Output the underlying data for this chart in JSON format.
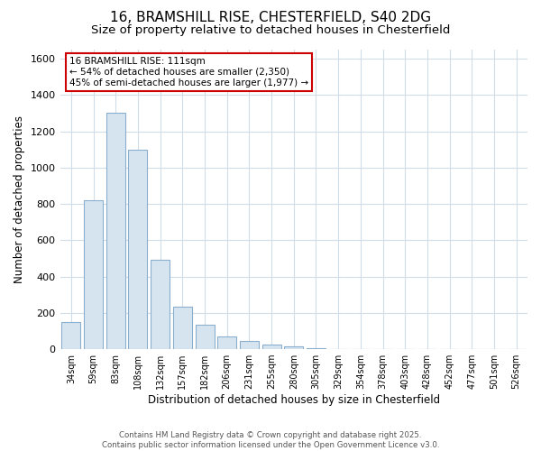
{
  "title1": "16, BRAMSHILL RISE, CHESTERFIELD, S40 2DG",
  "title2": "Size of property relative to detached houses in Chesterfield",
  "xlabel": "Distribution of detached houses by size in Chesterfield",
  "ylabel": "Number of detached properties",
  "bar_color": "#d6e4f0",
  "bar_edge_color": "#89aece",
  "categories": [
    "34sqm",
    "59sqm",
    "83sqm",
    "108sqm",
    "132sqm",
    "157sqm",
    "182sqm",
    "206sqm",
    "231sqm",
    "255sqm",
    "280sqm",
    "305sqm",
    "329sqm",
    "354sqm",
    "378sqm",
    "403sqm",
    "428sqm",
    "452sqm",
    "477sqm",
    "501sqm",
    "526sqm"
  ],
  "values": [
    150,
    820,
    1300,
    1100,
    490,
    235,
    135,
    70,
    45,
    25,
    15,
    5,
    0,
    0,
    0,
    0,
    0,
    0,
    0,
    0,
    0
  ],
  "vline_x": 3,
  "vline_color": "#333333",
  "annotation_text": "16 BRAMSHILL RISE: 111sqm\n← 54% of detached houses are smaller (2,350)\n45% of semi-detached houses are larger (1,977) →",
  "annotation_box_color": "#ffffff",
  "annotation_edge_color": "#cc0000",
  "footer_text": "Contains HM Land Registry data © Crown copyright and database right 2025.\nContains public sector information licensed under the Open Government Licence v3.0.",
  "ylim": [
    0,
    1650
  ],
  "background_color": "#ffffff",
  "grid_color": "#d0dce8",
  "title_fontsize": 11,
  "subtitle_fontsize": 9.5
}
